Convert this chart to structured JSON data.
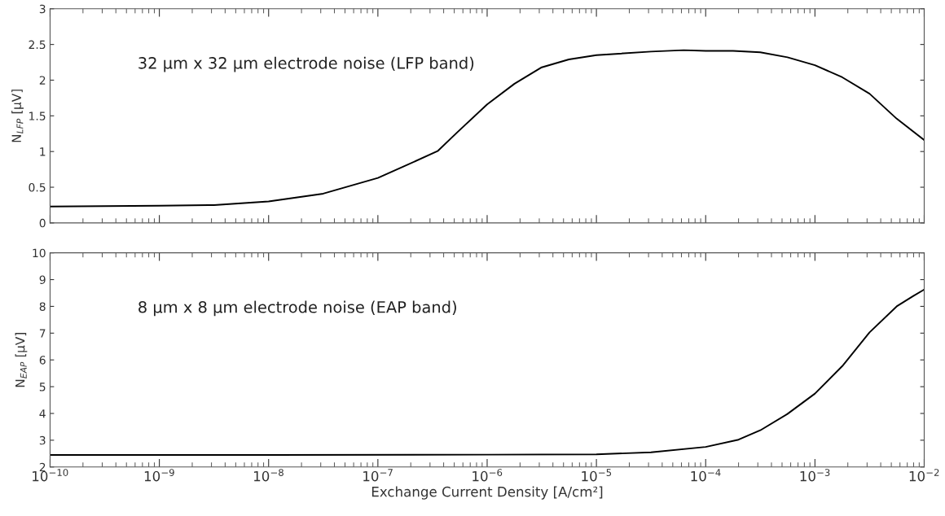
{
  "chart_data": [
    {
      "type": "line",
      "ylabel": "N$_{LFP}$ [µV]",
      "annotations": [
        "32 µm x 32 µm electrode noise (LFP band)"
      ],
      "log": "x",
      "tick_labels": "y",
      "grid": false,
      "marker": "none",
      "line_style": "solid",
      "xlim": [
        1e-10,
        0.01
      ],
      "xticks": [
        {
          "value": 1e-10,
          "label": null
        },
        {
          "value": 1e-09,
          "label": null
        },
        {
          "value": 1e-08,
          "label": null
        },
        {
          "value": 1e-07,
          "label": null
        },
        {
          "value": 1e-06,
          "label": null
        },
        {
          "value": 1e-05,
          "label": null
        },
        {
          "value": 0.0001,
          "label": null
        },
        {
          "value": 0.001,
          "label": null
        },
        {
          "value": 0.01,
          "label": null
        }
      ],
      "ylim": [
        0,
        3
      ],
      "yticks": [
        0,
        0.5,
        1,
        1.5,
        2,
        2.5,
        3
      ],
      "x": [
        1e-10,
        1e-09,
        3.16e-09,
        1e-08,
        3.16e-08,
        1e-07,
        1.78e-07,
        3.55e-07,
        5.25e-07,
        1e-06,
        1.78e-06,
        3.16e-06,
        5.6e-06,
        1e-05,
        3.16e-05,
        6.3e-05,
        0.0001,
        0.000178,
        0.000316,
        0.00056,
        0.001,
        0.00178,
        0.00316,
        0.0056,
        0.01
      ],
      "series": [
        {
          "color": "#000000",
          "values": [
            0.23,
            0.24,
            0.25,
            0.3,
            0.41,
            0.63,
            0.8,
            1.01,
            1.26,
            1.66,
            1.95,
            2.18,
            2.29,
            2.35,
            2.4,
            2.42,
            2.41,
            2.41,
            2.39,
            2.32,
            2.21,
            2.04,
            1.81,
            1.46,
            1.16
          ]
        }
      ]
    },
    {
      "type": "line",
      "ylabel": "N$_{EAP}$ [µV]",
      "xlabel": "Exchange Current Density [A/cm²]",
      "annotations": [
        "8 µm x 8 µm electrode noise (EAP band)"
      ],
      "log": "x",
      "grid": false,
      "marker": "none",
      "line_style": "solid",
      "xlim": [
        1e-10,
        0.01
      ],
      "xticks": [
        {
          "value": 1e-10,
          "label": "10$^{−10}$"
        },
        {
          "value": 1e-09,
          "label": "10$^{−9}$"
        },
        {
          "value": 1e-08,
          "label": "10$^{−8}$"
        },
        {
          "value": 1e-07,
          "label": "10$^{−7}$"
        },
        {
          "value": 1e-06,
          "label": "10$^{−6}$"
        },
        {
          "value": 1e-05,
          "label": "10$^{−5}$"
        },
        {
          "value": 0.0001,
          "label": "10$^{−4}$"
        },
        {
          "value": 0.001,
          "label": "10$^{−3}$"
        },
        {
          "value": 0.01,
          "label": "10$^{−2}$"
        }
      ],
      "ylim": [
        2,
        10
      ],
      "yticks": [
        2,
        3,
        4,
        5,
        6,
        7,
        8,
        9,
        10
      ],
      "x": [
        1e-10,
        1e-08,
        1e-06,
        1e-05,
        3.16e-05,
        0.0001,
        0.0002,
        0.000316,
        0.00056,
        0.001,
        0.00178,
        0.00316,
        0.0056,
        0.0079,
        0.01
      ],
      "series": [
        {
          "color": "#000000",
          "values": [
            2.45,
            2.45,
            2.46,
            2.47,
            2.55,
            2.75,
            3.02,
            3.37,
            3.98,
            4.74,
            5.77,
            7.03,
            8.0,
            8.38,
            8.63
          ]
        }
      ]
    }
  ]
}
